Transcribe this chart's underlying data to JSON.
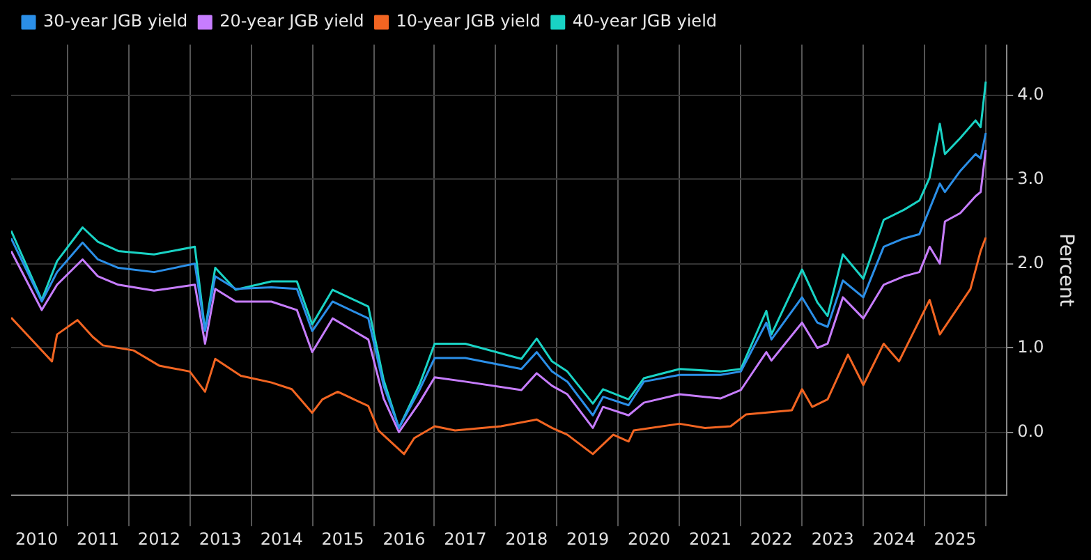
{
  "chart_data": {
    "type": "line",
    "ylabel": "Percent",
    "legend": "top left",
    "grid": true,
    "line_style": "solid",
    "marker": "none",
    "x": [
      "2010-02",
      "2010-08",
      "2010-11",
      "2011-04",
      "2011-07",
      "2011-11",
      "2012-06",
      "2013-02",
      "2013-04",
      "2013-06",
      "2013-10",
      "2014-05",
      "2014-10",
      "2015-01",
      "2015-05",
      "2015-12",
      "2016-03",
      "2016-06",
      "2016-10",
      "2017-01",
      "2017-07",
      "2018-06",
      "2018-09",
      "2018-12",
      "2019-03",
      "2019-08",
      "2019-10",
      "2020-03",
      "2020-06",
      "2021-01",
      "2021-09",
      "2022-01",
      "2022-06",
      "2022-07",
      "2023-01",
      "2023-04",
      "2023-06",
      "2023-09",
      "2024-01",
      "2024-05",
      "2024-09",
      "2024-12",
      "2025-02",
      "2025-04",
      "2025-05",
      "2025-08",
      "2025-11",
      "2025-12",
      "2026-01"
    ],
    "series": [
      {
        "name": "30-year JGB yield",
        "color": "#2b8fe8",
        "values": [
          2.3,
          1.55,
          1.9,
          2.25,
          2.05,
          1.95,
          1.9,
          2.0,
          1.2,
          1.85,
          1.7,
          1.72,
          1.7,
          1.2,
          1.55,
          1.35,
          0.55,
          0.05,
          0.5,
          0.88,
          0.88,
          0.75,
          0.95,
          0.72,
          0.6,
          0.2,
          0.42,
          0.32,
          0.6,
          0.68,
          0.68,
          0.72,
          1.3,
          1.1,
          1.6,
          1.3,
          1.25,
          1.8,
          1.6,
          2.2,
          2.3,
          2.35,
          2.65,
          2.95,
          2.85,
          3.1,
          3.3,
          3.25,
          3.55
        ]
      },
      {
        "name": "20-year JGB yield",
        "color": "#c77dff",
        "values": [
          2.15,
          1.45,
          1.75,
          2.05,
          1.85,
          1.75,
          1.68,
          1.75,
          1.05,
          1.7,
          1.55,
          1.55,
          1.45,
          0.95,
          1.35,
          1.1,
          0.4,
          0.0,
          0.35,
          0.65,
          0.6,
          0.5,
          0.7,
          0.55,
          0.45,
          0.05,
          0.3,
          0.2,
          0.35,
          0.45,
          0.4,
          0.5,
          0.95,
          0.85,
          1.3,
          1.0,
          1.05,
          1.6,
          1.35,
          1.75,
          1.85,
          1.9,
          2.2,
          2.0,
          2.5,
          2.6,
          2.8,
          2.85,
          3.35
        ]
      },
      {
        "name": "10-year JGB yield",
        "color": "#f26522",
        "x": [
          "2010-02",
          "2010-10",
          "2010-11",
          "2011-03",
          "2011-06",
          "2011-08",
          "2012-02",
          "2012-07",
          "2013-01",
          "2013-04",
          "2013-06",
          "2013-11",
          "2014-05",
          "2014-09",
          "2015-01",
          "2015-03",
          "2015-06",
          "2015-12",
          "2016-02",
          "2016-07",
          "2016-09",
          "2017-01",
          "2017-05",
          "2018-02",
          "2018-09",
          "2018-12",
          "2019-03",
          "2019-08",
          "2019-12",
          "2020-03",
          "2020-04",
          "2021-01",
          "2021-06",
          "2021-11",
          "2022-02",
          "2022-11",
          "2023-01",
          "2023-03",
          "2023-06",
          "2023-10",
          "2024-01",
          "2024-05",
          "2024-08",
          "2025-02",
          "2025-04",
          "2025-10",
          "2025-12",
          "2026-01"
        ],
        "values": [
          1.36,
          0.84,
          1.16,
          1.33,
          1.13,
          1.03,
          0.97,
          0.79,
          0.72,
          0.48,
          0.87,
          0.67,
          0.59,
          0.51,
          0.23,
          0.39,
          0.48,
          0.31,
          0.02,
          -0.26,
          -0.07,
          0.07,
          0.02,
          0.07,
          0.15,
          0.05,
          -0.03,
          -0.26,
          -0.03,
          -0.11,
          0.02,
          0.1,
          0.05,
          0.07,
          0.21,
          0.26,
          0.51,
          0.3,
          0.39,
          0.92,
          0.56,
          1.05,
          0.84,
          1.57,
          1.16,
          1.7,
          2.15,
          2.31
        ]
      },
      {
        "name": "40-year JGB yield",
        "color": "#19d3c5",
        "values": [
          2.39,
          1.57,
          2.03,
          2.43,
          2.26,
          2.15,
          2.11,
          2.2,
          1.21,
          1.95,
          1.69,
          1.79,
          1.79,
          1.28,
          1.69,
          1.49,
          0.62,
          0.05,
          0.56,
          1.05,
          1.05,
          0.87,
          1.11,
          0.84,
          0.72,
          0.34,
          0.51,
          0.39,
          0.64,
          0.75,
          0.72,
          0.75,
          1.44,
          1.16,
          1.93,
          1.54,
          1.38,
          2.11,
          1.82,
          2.52,
          2.64,
          2.75,
          3.02,
          3.66,
          3.3,
          3.49,
          3.7,
          3.62,
          4.16
        ]
      }
    ],
    "xlim": [
      "2010-02",
      "2026-05"
    ],
    "xticks": [
      {
        "value": "2010-07",
        "label": "2010"
      },
      {
        "value": "2011-01",
        "label": null
      },
      {
        "value": "2011-07",
        "label": "2011"
      },
      {
        "value": "2012-01",
        "label": null
      },
      {
        "value": "2012-07",
        "label": "2012"
      },
      {
        "value": "2013-01",
        "label": null
      },
      {
        "value": "2013-07",
        "label": "2013"
      },
      {
        "value": "2014-01",
        "label": null
      },
      {
        "value": "2014-07",
        "label": "2014"
      },
      {
        "value": "2015-01",
        "label": null
      },
      {
        "value": "2015-07",
        "label": "2015"
      },
      {
        "value": "2016-01",
        "label": null
      },
      {
        "value": "2016-07",
        "label": "2016"
      },
      {
        "value": "2017-01",
        "label": null
      },
      {
        "value": "2017-07",
        "label": "2017"
      },
      {
        "value": "2018-01",
        "label": null
      },
      {
        "value": "2018-07",
        "label": "2018"
      },
      {
        "value": "2019-01",
        "label": null
      },
      {
        "value": "2019-07",
        "label": "2019"
      },
      {
        "value": "2020-01",
        "label": null
      },
      {
        "value": "2020-07",
        "label": "2020"
      },
      {
        "value": "2021-01",
        "label": null
      },
      {
        "value": "2021-07",
        "label": "2021"
      },
      {
        "value": "2022-01",
        "label": null
      },
      {
        "value": "2022-07",
        "label": "2022"
      },
      {
        "value": "2023-01",
        "label": null
      },
      {
        "value": "2023-07",
        "label": "2023"
      },
      {
        "value": "2024-01",
        "label": null
      },
      {
        "value": "2024-07",
        "label": "2024"
      },
      {
        "value": "2025-01",
        "label": null
      },
      {
        "value": "2025-07",
        "label": "2025"
      },
      {
        "value": "2026-01",
        "label": null
      }
    ],
    "ylim": [
      -0.75,
      4.6
    ],
    "yticks": [
      {
        "value": 0,
        "label": "0.0"
      },
      {
        "value": 1,
        "label": "1.0"
      },
      {
        "value": 2,
        "label": "2.0"
      },
      {
        "value": 3,
        "label": "3.0"
      },
      {
        "value": 4,
        "label": "4.0"
      }
    ]
  }
}
